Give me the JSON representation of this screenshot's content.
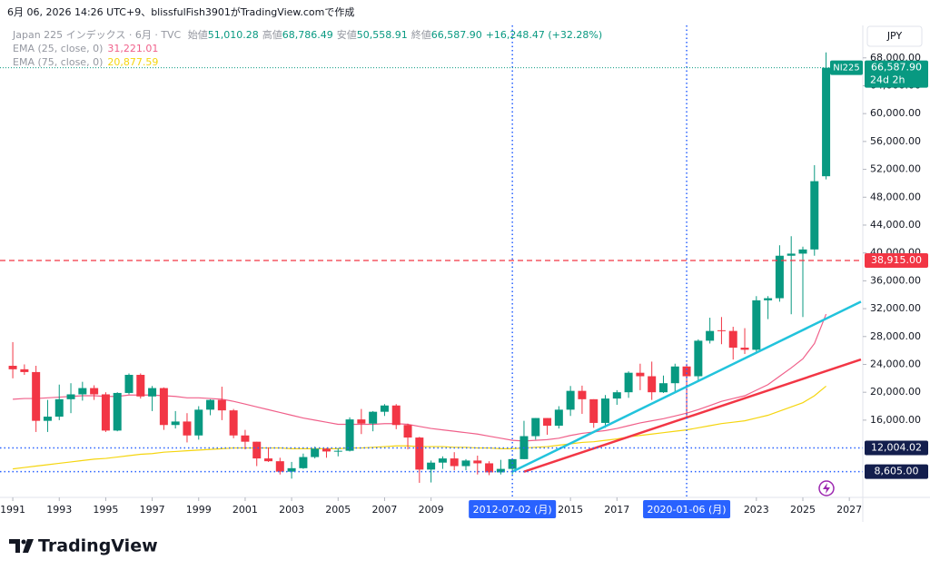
{
  "header": {
    "caption": "6月 06, 2026 14:26 UTC+9、blissfulFish3901がTradingView.comで作成"
  },
  "brand": "TradingView",
  "chart_data": {
    "type": "candlestick",
    "title": "Japan 225 インデックス · 6月 · TVC",
    "ohlc_legend": [
      {
        "label": "始値",
        "value": "51,010.28"
      },
      {
        "label": "高値",
        "value": "68,786.49"
      },
      {
        "label": "安値",
        "value": "50,558.91"
      },
      {
        "label": "終値",
        "value": "66,587.90"
      }
    ],
    "change": "+16,248.47 (+32.28%)",
    "currency": "JPY",
    "x": [
      1991,
      1991.5,
      1992,
      1992.5,
      1993,
      1993.5,
      1994,
      1994.5,
      1995,
      1995.5,
      1996,
      1996.5,
      1997,
      1997.5,
      1998,
      1998.5,
      1999,
      1999.5,
      2000,
      2000.5,
      2001,
      2001.5,
      2002,
      2002.5,
      2003,
      2003.5,
      2004,
      2004.5,
      2005,
      2005.5,
      2006,
      2006.5,
      2007,
      2007.5,
      2008,
      2008.5,
      2009,
      2009.5,
      2010,
      2010.5,
      2011,
      2011.5,
      2012,
      2012.5,
      2013,
      2013.5,
      2014,
      2014.5,
      2015,
      2015.5,
      2016,
      2016.5,
      2017,
      2017.5,
      2018,
      2018.5,
      2019,
      2019.5,
      2020,
      2020.5,
      2021,
      2021.5,
      2022,
      2022.5,
      2023,
      2023.5,
      2024,
      2024.5,
      2025,
      2025.5,
      2026
    ],
    "series": [
      {
        "name": "NI225",
        "up_color": "#089981",
        "down_color": "#f23645",
        "open": [
          23800,
          23300,
          22900,
          15900,
          16500,
          19000,
          19700,
          20600,
          19700,
          14500,
          19900,
          22500,
          19400,
          20600,
          15300,
          15800,
          13800,
          17500,
          18900,
          17400,
          13800,
          12900,
          10500,
          10100,
          8600,
          9100,
          10700,
          11900,
          11500,
          11600,
          16100,
          15500,
          17200,
          18100,
          15300,
          13500,
          8900,
          9900,
          10500,
          9400,
          10200,
          9800,
          8500,
          9000,
          10400,
          13700,
          16300,
          15200,
          17500,
          20200,
          19000,
          15600,
          19100,
          20000,
          22800,
          22300,
          20000,
          21300,
          23700,
          22300,
          27400,
          28900,
          28800,
          26400,
          26100,
          33200,
          33500,
          39600,
          39900,
          40500,
          51010.28
        ],
        "high": [
          27200,
          24000,
          23800,
          18900,
          21100,
          21300,
          21500,
          21000,
          20000,
          20000,
          22700,
          22700,
          20900,
          20700,
          17300,
          17000,
          18000,
          19000,
          20800,
          17600,
          14600,
          12900,
          12100,
          10600,
          10000,
          11200,
          12200,
          12000,
          12000,
          16400,
          17600,
          17300,
          18300,
          18300,
          15500,
          13600,
          10200,
          10800,
          11400,
          10400,
          10900,
          10100,
          10300,
          10500,
          15900,
          16300,
          16300,
          18000,
          20900,
          20950,
          19000,
          19600,
          20300,
          23000,
          24100,
          24400,
          22400,
          24100,
          24100,
          27600,
          30700,
          30800,
          29400,
          29200,
          33800,
          33800,
          41100,
          42400,
          40900,
          52600,
          68786.49
        ],
        "low": [
          22000,
          22500,
          14300,
          14300,
          16000,
          17000,
          18800,
          18900,
          14300,
          14400,
          19700,
          19100,
          17300,
          14600,
          14800,
          12800,
          13200,
          16700,
          16000,
          13400,
          11800,
          9400,
          10000,
          8200,
          7600,
          9000,
          10500,
          10600,
          10800,
          11500,
          14000,
          14400,
          16600,
          14700,
          11800,
          7000,
          7050,
          9000,
          8800,
          8800,
          8200,
          8100,
          8200,
          8200,
          10400,
          13200,
          13900,
          14800,
          16600,
          16900,
          14900,
          14900,
          18200,
          19200,
          20300,
          18900,
          19900,
          20100,
          16400,
          21500,
          27000,
          26900,
          24700,
          25500,
          25700,
          30500,
          33000,
          31200,
          30800,
          39600,
          50558.91
        ],
        "close": [
          23300,
          22900,
          15900,
          16500,
          19000,
          19700,
          20600,
          19700,
          14500,
          19900,
          22500,
          19400,
          20600,
          15300,
          15800,
          13800,
          17500,
          18900,
          17400,
          13800,
          12900,
          10500,
          10100,
          8600,
          9100,
          10700,
          11900,
          11500,
          11600,
          16100,
          15500,
          17200,
          18100,
          15300,
          13500,
          8900,
          9900,
          10500,
          9400,
          10200,
          9800,
          8500,
          9000,
          10400,
          13700,
          16300,
          15200,
          17500,
          20200,
          19000,
          15600,
          19100,
          20000,
          22800,
          22300,
          20000,
          21300,
          23700,
          22300,
          27400,
          28800,
          28800,
          26400,
          26100,
          33200,
          33500,
          39600,
          39900,
          40500,
          50300,
          66587.9
        ]
      },
      {
        "name": "EMA (25, close, 0)",
        "type": "line",
        "color": "#f0608a",
        "value_label": "31,221.01",
        "values": [
          19000,
          19100,
          19100,
          19200,
          19300,
          19400,
          19500,
          19500,
          19400,
          19400,
          19600,
          19600,
          19600,
          19500,
          19400,
          19200,
          19200,
          19100,
          19000,
          18700,
          18300,
          17900,
          17500,
          17100,
          16700,
          16300,
          16000,
          15700,
          15400,
          15400,
          15400,
          15400,
          15500,
          15500,
          15400,
          15100,
          14800,
          14600,
          14400,
          14200,
          14000,
          13700,
          13400,
          13100,
          13000,
          13100,
          13200,
          13400,
          13800,
          14100,
          14300,
          14500,
          14800,
          15200,
          15600,
          15900,
          16200,
          16600,
          17000,
          17500,
          18100,
          18700,
          19100,
          19500,
          20300,
          21100,
          22300,
          23500,
          24800,
          27000,
          31221.01
        ]
      },
      {
        "name": "EMA (75, close, 0)",
        "type": "line",
        "color": "#f5d50f",
        "value_label": "20,877.59",
        "values": [
          9000,
          9200,
          9400,
          9600,
          9800,
          10000,
          10200,
          10400,
          10500,
          10700,
          10900,
          11100,
          11200,
          11400,
          11500,
          11600,
          11700,
          11800,
          11900,
          12000,
          12000,
          12000,
          12000,
          12000,
          11900,
          11900,
          11900,
          11900,
          11900,
          12000,
          12000,
          12100,
          12200,
          12300,
          12300,
          12200,
          12200,
          12200,
          12100,
          12100,
          12000,
          12000,
          11900,
          11900,
          12000,
          12100,
          12200,
          12400,
          12600,
          12800,
          12900,
          13100,
          13300,
          13600,
          13800,
          14000,
          14200,
          14400,
          14600,
          14900,
          15200,
          15500,
          15700,
          15900,
          16300,
          16700,
          17300,
          17900,
          18500,
          19500,
          20877.59
        ]
      }
    ],
    "last_price": {
      "symbol": "NI225",
      "value": 66587.9,
      "label": "66,587.90",
      "countdown": "24d 2h"
    },
    "horizontal_lines": [
      {
        "value": 38915,
        "label": "38,915.00",
        "color": "#f23645",
        "style": "dashed"
      },
      {
        "value": 12004.02,
        "label": "12,004.02",
        "color": "#2962ff",
        "style": "dotted"
      },
      {
        "value": 8605,
        "label": "8,605.00",
        "color": "#2962ff",
        "style": "dotted"
      }
    ],
    "vertical_lines": [
      {
        "value": 2012.5,
        "label": "2012-07-02 (月)"
      },
      {
        "value": 2020,
        "label": "2020-01-06 (月)"
      }
    ],
    "trend_lines": [
      {
        "color": "#22c3dc",
        "x": [
          2012.5,
          2027.5
        ],
        "y": [
          8605,
          33000
        ]
      },
      {
        "color": "#f23645",
        "x": [
          2013,
          2027.5
        ],
        "y": [
          8605,
          24700
        ]
      }
    ],
    "xlim": [
      1990.45,
      2027.58
    ],
    "ylim": [
      5300,
      72400
    ],
    "xticks": [
      1991,
      1993,
      1995,
      1997,
      1999,
      2001,
      2003,
      2005,
      2007,
      2009,
      2015,
      2017,
      2023,
      2025,
      2027
    ],
    "yticks": [
      {
        "value": 16000,
        "label": "16,000.00"
      },
      {
        "value": 20000,
        "label": "20,000.00"
      },
      {
        "value": 24000,
        "label": "24,000.00"
      },
      {
        "value": 28000,
        "label": "28,000.00"
      },
      {
        "value": 32000,
        "label": "32,000.00"
      },
      {
        "value": 36000,
        "label": "36,000.00"
      },
      {
        "value": 40000,
        "label": "40,000.00"
      },
      {
        "value": 44000,
        "label": "44,000.00"
      },
      {
        "value": 48000,
        "label": "48,000.00"
      },
      {
        "value": 52000,
        "label": "52,000.00"
      },
      {
        "value": 56000,
        "label": "56,000.00"
      },
      {
        "value": 60000,
        "label": "60,000.00"
      },
      {
        "value": 64000,
        "label": "64,000.00"
      },
      {
        "value": 68000,
        "label": "68,000.00"
      }
    ],
    "log_scale": false,
    "grid": false
  }
}
